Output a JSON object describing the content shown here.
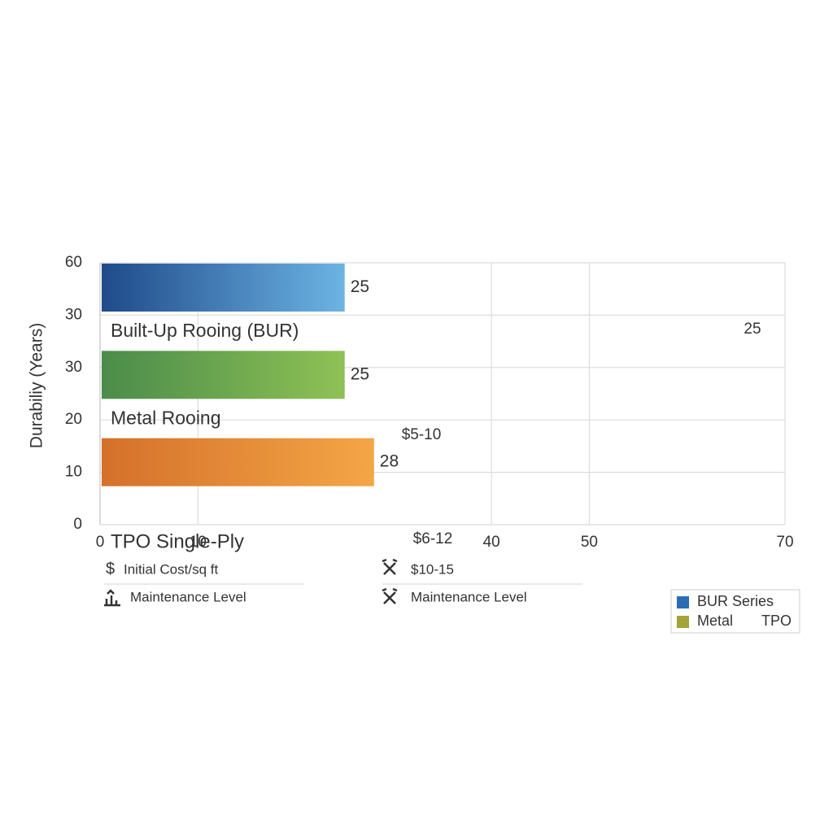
{
  "chart_data": {
    "type": "bar",
    "orientation": "horizontal",
    "y_axis_label": "Durabiliy (Years)",
    "y_tick_labels": [
      "60",
      "30",
      "30",
      "20",
      "10",
      "0"
    ],
    "categories": [
      "Built-Up Rooing (BUR)",
      "Metal Rooing",
      "TPO Single-Ply"
    ],
    "values": [
      25,
      25,
      28
    ],
    "colors": [
      [
        "#1f4a8a",
        "#6cb4e4"
      ],
      [
        "#4a8c4a",
        "#8fc155"
      ],
      [
        "#d4702a",
        "#f4a646"
      ]
    ],
    "xlim": [
      0,
      70
    ],
    "xticks": [
      0,
      10,
      40,
      50,
      70
    ],
    "grid": true,
    "annotations": [
      "25",
      "$5-10",
      "$6-12"
    ],
    "info_rows": [
      [
        "$",
        "Initial Cost/sq ft",
        "$10-15"
      ],
      [
        "Maintenance Level",
        "Maintenance Level"
      ]
    ],
    "legend": {
      "position": "lower right",
      "entries": [
        {
          "name": "BUR Series",
          "color": "#2a6db5"
        },
        {
          "name": "Metal",
          "color": "#a3a339"
        },
        {
          "name": "TPO"
        }
      ]
    }
  }
}
